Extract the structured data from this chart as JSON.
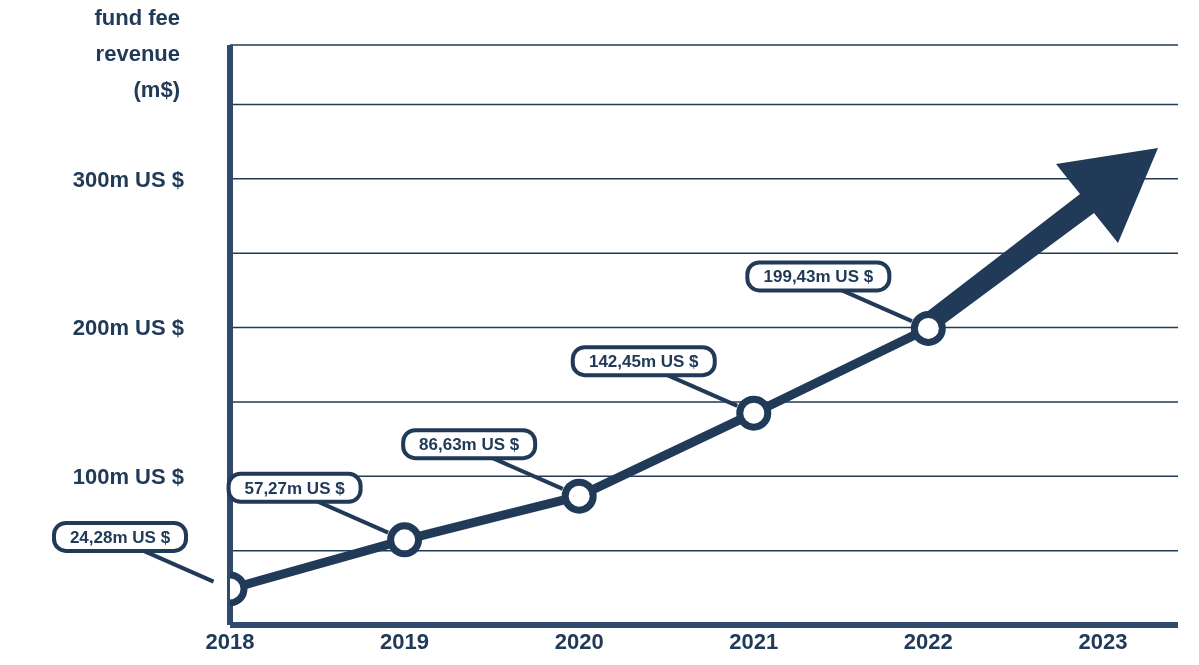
{
  "chart_data": {
    "type": "line",
    "ylabel": "fund fee revenue (m$)",
    "categories": [
      "2018",
      "2019",
      "2020",
      "2021",
      "2022",
      "2023"
    ],
    "series": [
      {
        "color": "#203a58",
        "values": [
          24.28,
          57.27,
          86.63,
          142.45,
          199.43,
          null
        ],
        "value_labels": [
          "24,28m US $",
          "57,27m US $",
          "86,63m US $",
          "142,45m US $",
          "199,43m US $",
          null
        ]
      }
    ],
    "ylim": [
      0,
      390
    ],
    "yticks": [
      {
        "value": 50,
        "label": null
      },
      {
        "value": 100,
        "label": "100m US $"
      },
      {
        "value": 150,
        "label": null
      },
      {
        "value": 200,
        "label": "200m US $"
      },
      {
        "value": 250,
        "label": null
      },
      {
        "value": 300,
        "label": "300m US $"
      },
      {
        "value": 350,
        "label": null
      }
    ],
    "grid": "y",
    "marker": "circle",
    "line_style": "solid"
  }
}
